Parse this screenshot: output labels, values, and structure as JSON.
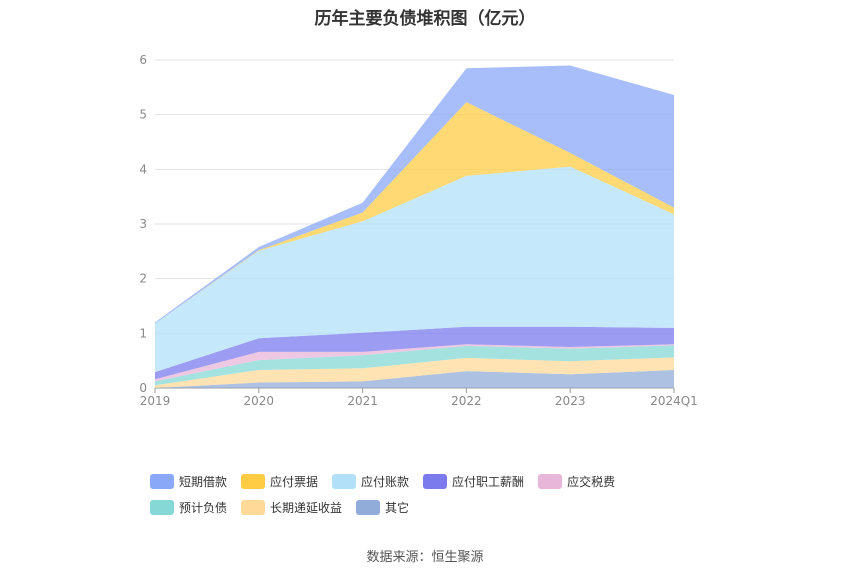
{
  "chart_data": {
    "type": "area",
    "stacked": true,
    "title": "历年主要负债堆积图（亿元）",
    "xlabel": "",
    "ylabel": "",
    "ylim": [
      0,
      6
    ],
    "yticks": [
      "0",
      "1",
      "2",
      "3",
      "4",
      "5",
      "6"
    ],
    "categories": [
      "2019",
      "2020",
      "2021",
      "2022",
      "2023",
      "2024Q1"
    ],
    "grid": true,
    "legend_position": "bottom",
    "series": [
      {
        "name": "短期借款",
        "color": "#8aa8f8",
        "values": [
          0.02,
          0.06,
          0.18,
          0.62,
          1.6,
          2.06
        ]
      },
      {
        "name": "应付票据",
        "color": "#ffcc44",
        "values": [
          0.0,
          0.01,
          0.16,
          1.35,
          0.25,
          0.12
        ]
      },
      {
        "name": "应付账款",
        "color": "#b3e0f9",
        "values": [
          0.89,
          1.6,
          2.04,
          2.76,
          2.93,
          2.08
        ]
      },
      {
        "name": "应付职工薪酬",
        "color": "#7b7bee",
        "values": [
          0.13,
          0.25,
          0.35,
          0.32,
          0.37,
          0.3
        ]
      },
      {
        "name": "应交税费",
        "color": "#e8b6d9",
        "values": [
          0.04,
          0.15,
          0.06,
          0.03,
          0.03,
          0.02
        ]
      },
      {
        "name": "预计负债",
        "color": "#86d8d6",
        "values": [
          0.07,
          0.18,
          0.24,
          0.22,
          0.23,
          0.22
        ]
      },
      {
        "name": "长期递延收益",
        "color": "#ffd998",
        "values": [
          0.05,
          0.23,
          0.24,
          0.24,
          0.24,
          0.23
        ]
      },
      {
        "name": "其它",
        "color": "#91acd8",
        "values": [
          0.0,
          0.1,
          0.12,
          0.31,
          0.25,
          0.33
        ]
      }
    ]
  },
  "source_text": "数据来源：恒生聚源"
}
